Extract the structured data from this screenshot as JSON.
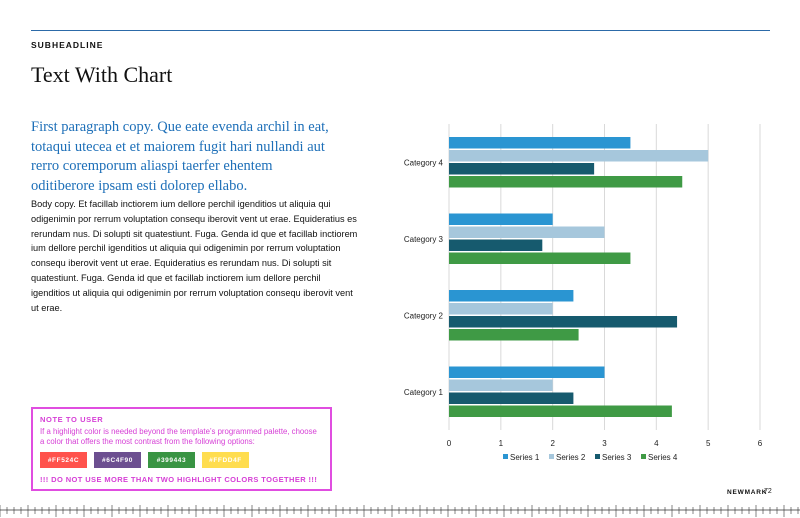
{
  "page": {
    "subheadline": "SUBHEADLINE",
    "title": "Text With Chart",
    "lead": "First paragraph copy. Que eate evenda archil in eat, totaqui utecea et et maiorem fugit hari nullandi aut rerro corem­porum aliaspi taerfer ehentem oditiberore ipsam esti dolorep ellabo.",
    "body": "Body copy. Et facillab inctiorem ium dellore perchil igenditios ut aliquia qui odigenimin por rerrum voluptation consequ iberovit vent ut erae. Equideratius es rerundam nus. Di solupti sit quatestiunt. Fuga. Genda id que et facillab inctiorem ium dellore perchil igenditios ut aliquia qui odigenimin por rerrum voluptation consequ iberovit vent ut erae. Equideratius es rerundam nus. Di solupti sit quatestiunt. Fuga. Genda id que et facillab inctiorem ium dellore perchil igenditios ut aliquia qui odigenimin por rerrum voluptation consequ iberovit vent ut erae."
  },
  "note": {
    "title": "NOTE TO USER",
    "text": "If a highlight color is needed beyond the template’s programmed palette, choose a color that offers the most contrast from the following options:",
    "swatches": [
      {
        "label": "#FF524C",
        "color": "#FF524C"
      },
      {
        "label": "#6C4F90",
        "color": "#6C4F90"
      },
      {
        "label": "#399443",
        "color": "#399443"
      },
      {
        "label": "#FFDD4F",
        "color": "#FFDD4F"
      }
    ],
    "warning": "!!! DO NOT USE MORE THAN TWO HIGHLIGHT COLORS TOGETHER !!!"
  },
  "footer": {
    "brand": "NEWMARK",
    "page_number": "72"
  },
  "chart_data": {
    "type": "bar",
    "orientation": "horizontal",
    "categories": [
      "Category 1",
      "Category 2",
      "Category 3",
      "Category 4"
    ],
    "series": [
      {
        "name": "Series 1",
        "values": [
          3,
          2.4,
          2,
          3.5
        ],
        "color": "#2a95d2"
      },
      {
        "name": "Series 2",
        "values": [
          2,
          2,
          3,
          5
        ],
        "color": "#a6c7dc"
      },
      {
        "name": "Series 3",
        "values": [
          2.4,
          4.4,
          1.8,
          2.8
        ],
        "color": "#165a6e"
      },
      {
        "name": "Series 4",
        "values": [
          4.3,
          2.5,
          3.5,
          4.5
        ],
        "color": "#3f9a45"
      }
    ],
    "xlim": [
      0,
      6
    ],
    "xticks": [
      "0",
      "1",
      "2",
      "3",
      "4",
      "5",
      "6"
    ],
    "grid": true,
    "legend": "bottom"
  }
}
